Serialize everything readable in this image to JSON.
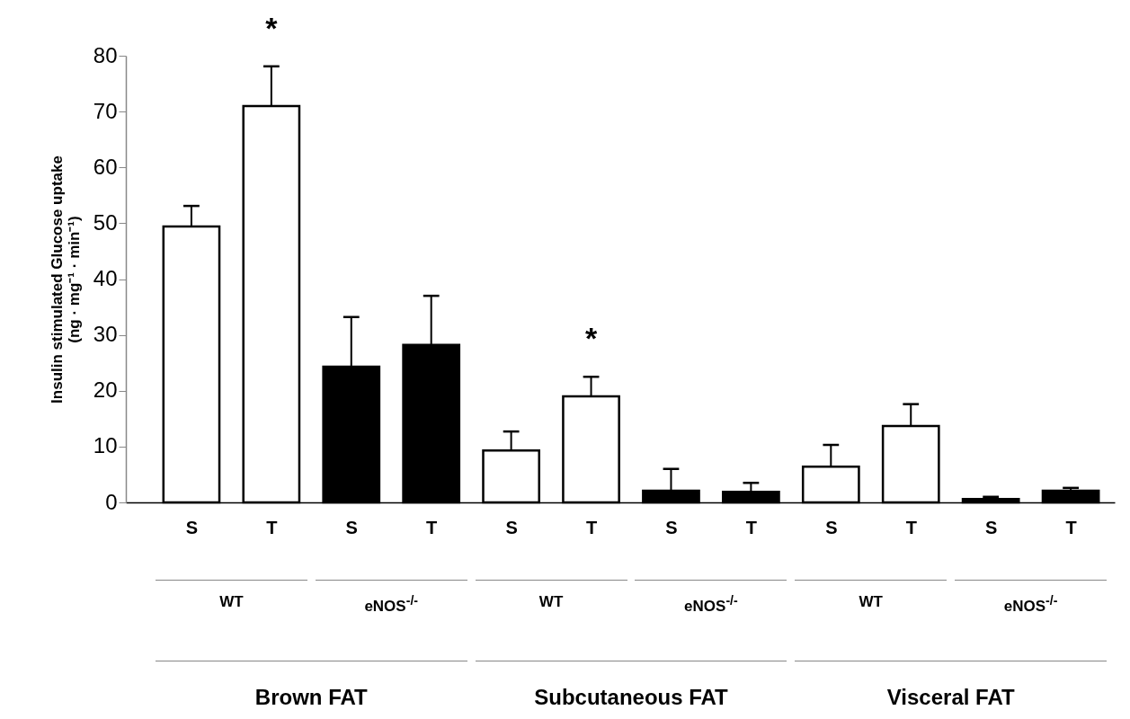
{
  "chart_data": {
    "type": "bar",
    "ylabel": "Insulin stimulated Glucose uptake\n(ng · mg⁻¹ · min⁻¹)",
    "categories": [
      "S",
      "T",
      "S",
      "T",
      "S",
      "T",
      "S",
      "T",
      "S",
      "T",
      "S",
      "T"
    ],
    "values": [
      49.4,
      71.0,
      24.3,
      28.2,
      9.3,
      19.0,
      2.1,
      1.9,
      6.4,
      13.7,
      0.6,
      2.1
    ],
    "errors": [
      [
        49.4,
        53.1
      ],
      [
        71.0,
        78.1
      ],
      [
        24.3,
        33.2
      ],
      [
        28.2,
        37.0
      ],
      [
        9.3,
        12.7
      ],
      [
        19.0,
        22.5
      ],
      [
        2.1,
        6.0
      ],
      [
        1.9,
        3.5
      ],
      [
        6.4,
        10.3
      ],
      [
        13.7,
        17.6
      ],
      [
        0.6,
        1.0
      ],
      [
        2.1,
        2.6
      ]
    ],
    "colors": [
      "#ffffff",
      "#ffffff",
      "#000000",
      "#000000",
      "#ffffff",
      "#ffffff",
      "#000000",
      "#000000",
      "#ffffff",
      "#ffffff",
      "#000000",
      "#000000"
    ],
    "ylim": [
      0,
      80
    ],
    "yticks": [
      0,
      10,
      20,
      30,
      40,
      50,
      60,
      70,
      80
    ],
    "grid": false,
    "annotations": [
      "WT",
      "eNOS$^{-/-}$",
      "WT",
      "eNOS$^{-/-}$",
      "WT",
      "eNOS$^{-/-}$",
      "Brown FAT",
      "Subcutaneous FAT",
      "Visceral FAT",
      {
        "text": "*",
        "x": "T",
        "y": 78.1
      },
      {
        "text": "*",
        "y": 22.5
      }
    ]
  }
}
